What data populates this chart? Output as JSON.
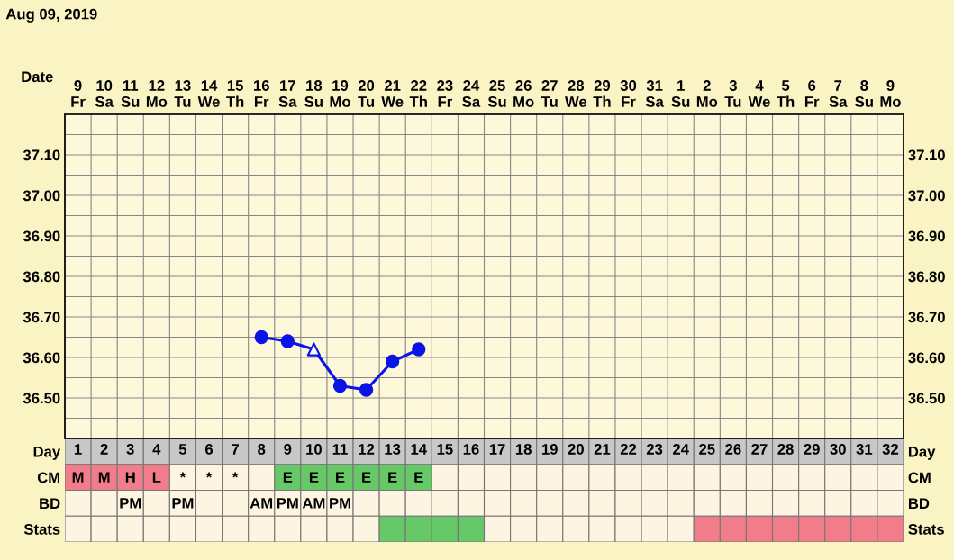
{
  "chart_data": [
    {
      "type": "line",
      "title": "Aug 09, 2019",
      "xlabel": "Date",
      "categories": [
        "9\nFr",
        "10\nSa",
        "11\nSu",
        "12\nMo",
        "13\nTu",
        "14\nWe",
        "15\nTh",
        "16\nFr",
        "17\nSa",
        "18\nSu",
        "19\nMo",
        "20\nTu",
        "21\nWe",
        "22\nTh",
        "23\nFr",
        "24\nSa",
        "25\nSu",
        "26\nMo",
        "27\nTu",
        "28\nWe",
        "29\nTh",
        "30\nFr",
        "31\nSa",
        "1\nSu",
        "2\nMo",
        "3\nTu",
        "4\nWe",
        "5\nTh",
        "6\nFr",
        "7\nSa",
        "8\nSu",
        "9\nMo"
      ],
      "series": [
        {
          "type": "line",
          "marker": "none",
          "color": "#0a14e6",
          "values": [
            null,
            null,
            null,
            null,
            null,
            null,
            null,
            36.65,
            36.64,
            36.62,
            36.53,
            36.52,
            36.59,
            36.62,
            null,
            null,
            null,
            null,
            null,
            null,
            null,
            null,
            null,
            null,
            null,
            null,
            null,
            null,
            null,
            null,
            null,
            null
          ]
        },
        {
          "type": "scatter",
          "marker": "circle",
          "color": "#0a14e6",
          "values": [
            null,
            null,
            null,
            null,
            null,
            null,
            null,
            36.65,
            36.64,
            null,
            36.53,
            36.52,
            36.59,
            36.62,
            null,
            null,
            null,
            null,
            null,
            null,
            null,
            null,
            null,
            null,
            null,
            null,
            null,
            null,
            null,
            null,
            null,
            null
          ]
        },
        {
          "type": "scatter",
          "marker": "triangle",
          "color": "#0a14e6",
          "values": [
            null,
            null,
            null,
            null,
            null,
            null,
            null,
            null,
            null,
            36.62,
            null,
            null,
            null,
            null,
            null,
            null,
            null,
            null,
            null,
            null,
            null,
            null,
            null,
            null,
            null,
            null,
            null,
            null,
            null,
            null,
            null,
            null
          ]
        }
      ],
      "ylim": [
        36.4,
        37.2
      ],
      "yticks": [
        {
          "value": 36.45,
          "label": null
        },
        {
          "value": 36.5,
          "label": "36.50"
        },
        {
          "value": 36.55,
          "label": null
        },
        {
          "value": 36.6,
          "label": "36.60"
        },
        {
          "value": 36.65,
          "label": null
        },
        {
          "value": 36.7,
          "label": "36.70"
        },
        {
          "value": 36.75,
          "label": null
        },
        {
          "value": 36.8,
          "label": "36.80"
        },
        {
          "value": 36.85,
          "label": null
        },
        {
          "value": 36.9,
          "label": "36.90"
        },
        {
          "value": 36.95,
          "label": null
        },
        {
          "value": 37.0,
          "label": "37.00"
        },
        {
          "value": 37.05,
          "label": null
        },
        {
          "value": 37.1,
          "label": "37.10"
        },
        {
          "value": 37.15,
          "label": null
        }
      ],
      "y2lim": [
        36.4,
        37.2
      ],
      "y2ticks": [
        {
          "value": 36.45,
          "label": null
        },
        {
          "value": 36.5,
          "label": "36.50"
        },
        {
          "value": 36.55,
          "label": null
        },
        {
          "value": 36.6,
          "label": "36.60"
        },
        {
          "value": 36.65,
          "label": null
        },
        {
          "value": 36.7,
          "label": "36.70"
        },
        {
          "value": 36.75,
          "label": null
        },
        {
          "value": 36.8,
          "label": "36.80"
        },
        {
          "value": 36.85,
          "label": null
        },
        {
          "value": 36.9,
          "label": "36.90"
        },
        {
          "value": 36.95,
          "label": null
        },
        {
          "value": 37.0,
          "label": "37.00"
        },
        {
          "value": 37.05,
          "label": null
        },
        {
          "value": 37.1,
          "label": "37.10"
        },
        {
          "value": 37.15,
          "label": null
        }
      ],
      "x2lim": [
        0.5,
        32.5
      ],
      "x2ticks": [
        1,
        2,
        3,
        4,
        5,
        6,
        7,
        8,
        9,
        10,
        11,
        12,
        13,
        14,
        15,
        16,
        17,
        18,
        19,
        20,
        21,
        22,
        23,
        24,
        25,
        26,
        27,
        28,
        29,
        30,
        31,
        32
      ],
      "grid": true
    },
    {
      "type": "other",
      "y_categories": [
        "Day",
        "CM",
        "BD",
        "Stats"
      ],
      "y2_categories": [
        "Day",
        "CM",
        "BD",
        "Stats"
      ],
      "cell_labels": [
        [
          null,
          null,
          null,
          null,
          null,
          null,
          null,
          null,
          null,
          null,
          null,
          null,
          null,
          null,
          null,
          null,
          null,
          null,
          null,
          null,
          null,
          null,
          null,
          null,
          null,
          null,
          null,
          null,
          null,
          null,
          null,
          null
        ],
        [
          "M",
          "M",
          "H",
          "L",
          "*",
          "*",
          "*",
          null,
          "E",
          "E",
          "E",
          "E",
          "E",
          "E",
          null,
          null,
          null,
          null,
          null,
          null,
          null,
          null,
          null,
          null,
          null,
          null,
          null,
          null,
          null,
          null,
          null,
          null
        ],
        [
          null,
          null,
          "PM",
          null,
          "PM",
          null,
          null,
          "AM",
          "PM",
          "AM",
          "PM",
          null,
          null,
          null,
          null,
          null,
          null,
          null,
          null,
          null,
          null,
          null,
          null,
          null,
          null,
          null,
          null,
          null,
          null,
          null,
          null,
          null
        ],
        [
          null,
          null,
          null,
          null,
          null,
          null,
          null,
          null,
          null,
          null,
          null,
          null,
          null,
          null,
          null,
          null,
          null,
          null,
          null,
          null,
          null,
          null,
          null,
          null,
          null,
          null,
          null,
          null,
          null,
          null,
          null,
          null
        ]
      ],
      "colors": [
        [
          "#c8c8c8",
          "#c8c8c8",
          "#c8c8c8",
          "#c8c8c8",
          "#c8c8c8",
          "#c8c8c8",
          "#c8c8c8",
          "#c8c8c8",
          "#c8c8c8",
          "#c8c8c8",
          "#c8c8c8",
          "#c8c8c8",
          "#c8c8c8",
          "#c8c8c8",
          "#c8c8c8",
          "#c8c8c8",
          "#c8c8c8",
          "#c8c8c8",
          "#c8c8c8",
          "#c8c8c8",
          "#c8c8c8",
          "#c8c8c8",
          "#c8c8c8",
          "#c8c8c8",
          "#c8c8c8",
          "#c8c8c8",
          "#c8c8c8",
          "#c8c8c8",
          "#c8c8c8",
          "#c8c8c8",
          "#c8c8c8",
          "#c8c8c8"
        ],
        [
          "#f27d8a",
          "#f27d8a",
          "#f27d8a",
          "#f27d8a",
          "#fdf5e2",
          "#fdf5e2",
          "#fdf5e2",
          "#fdf5e2",
          "#66c866",
          "#66c866",
          "#66c866",
          "#66c866",
          "#66c866",
          "#66c866",
          "#fdf5e2",
          "#fdf5e2",
          "#fdf5e2",
          "#fdf5e2",
          "#fdf5e2",
          "#fdf5e2",
          "#fdf5e2",
          "#fdf5e2",
          "#fdf5e2",
          "#fdf5e2",
          "#fdf5e2",
          "#fdf5e2",
          "#fdf5e2",
          "#fdf5e2",
          "#fdf5e2",
          "#fdf5e2",
          "#fdf5e2",
          "#fdf5e2"
        ],
        [
          "#fdf5e2",
          "#fdf5e2",
          "#fdf5e2",
          "#fdf5e2",
          "#fdf5e2",
          "#fdf5e2",
          "#fdf5e2",
          "#fdf5e2",
          "#fdf5e2",
          "#fdf5e2",
          "#fdf5e2",
          "#fdf5e2",
          "#fdf5e2",
          "#fdf5e2",
          "#fdf5e2",
          "#fdf5e2",
          "#fdf5e2",
          "#fdf5e2",
          "#fdf5e2",
          "#fdf5e2",
          "#fdf5e2",
          "#fdf5e2",
          "#fdf5e2",
          "#fdf5e2",
          "#fdf5e2",
          "#fdf5e2",
          "#fdf5e2",
          "#fdf5e2",
          "#fdf5e2",
          "#fdf5e2",
          "#fdf5e2",
          "#fdf5e2"
        ],
        [
          "#fdf5e2",
          "#fdf5e2",
          "#fdf5e2",
          "#fdf5e2",
          "#fdf5e2",
          "#fdf5e2",
          "#fdf5e2",
          "#fdf5e2",
          "#fdf5e2",
          "#fdf5e2",
          "#fdf5e2",
          "#fdf5e2",
          "#66c866",
          "#66c866",
          "#66c866",
          "#66c866",
          "#fdf5e2",
          "#fdf5e2",
          "#fdf5e2",
          "#fdf5e2",
          "#fdf5e2",
          "#fdf5e2",
          "#fdf5e2",
          "#fdf5e2",
          "#f27d8a",
          "#f27d8a",
          "#f27d8a",
          "#f27d8a",
          "#f27d8a",
          "#f27d8a",
          "#f27d8a",
          "#f27d8a"
        ]
      ]
    }
  ]
}
